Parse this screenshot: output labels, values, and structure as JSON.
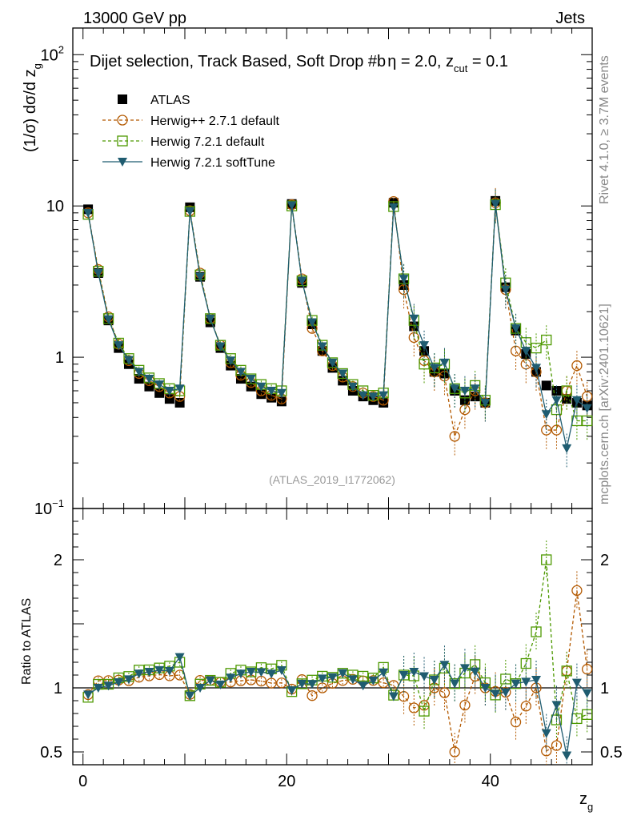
{
  "header": {
    "left": "13000 GeV pp",
    "right": "Jets"
  },
  "side_labels": {
    "rivet": "Rivet 4.1.0, ≥ 3.7M events",
    "source": "mcplots.cern.ch [arXiv:2401.10621]"
  },
  "chart_data": {
    "type": "line",
    "title": "Dijet selection, Track Based, Soft Drop #b",
    "subtitle_parts": {
      "eta": "η = 2.0, z",
      "cut_sub": "cut",
      "cut_val": " = 0.1"
    },
    "watermark": "(ATLAS_2019_I1772062)",
    "ylabel": "(1/σ) dσ/d z",
    "ylabel_sub": "g",
    "ratio_ylabel": "Ratio to ATLAS",
    "xlabel": "z",
    "xlabel_sub": "g",
    "xlim": [
      -1,
      50
    ],
    "ylim": [
      0.1,
      150
    ],
    "yscale": "log",
    "ratio_ylim": [
      0.4,
      2.4
    ],
    "x_ticks": [
      "0",
      "20",
      "40"
    ],
    "x_tick_values": [
      0,
      20,
      40
    ],
    "y_ticks": [
      {
        "value": 0.1,
        "label": "10",
        "exp": "−1"
      },
      {
        "value": 1,
        "label": "1",
        "exp": ""
      },
      {
        "value": 10,
        "label": "10",
        "exp": ""
      },
      {
        "value": 100,
        "label": "10",
        "exp": "2"
      }
    ],
    "ratio_ticks": [
      {
        "value": 0.5,
        "label": "0.5"
      },
      {
        "value": 1,
        "label": "1"
      },
      {
        "value": 2,
        "label": "2"
      }
    ],
    "x": [
      0.5,
      1.5,
      2.5,
      3.5,
      4.5,
      5.5,
      6.5,
      7.5,
      8.5,
      9.5,
      10.5,
      11.5,
      12.5,
      13.5,
      14.5,
      15.5,
      16.5,
      17.5,
      18.5,
      19.5,
      20.5,
      21.5,
      22.5,
      23.5,
      24.5,
      25.5,
      26.5,
      27.5,
      28.5,
      29.5,
      30.5,
      31.5,
      32.5,
      33.5,
      34.5,
      35.5,
      36.5,
      37.5,
      38.5,
      39.5,
      40.5,
      41.5,
      42.5,
      43.5,
      44.5,
      45.5,
      46.5,
      47.5,
      48.5,
      49.5
    ],
    "series": [
      {
        "name": "ATLAS",
        "color": "#000000",
        "marker": "square-filled",
        "values": [
          9.5,
          3.6,
          1.75,
          1.15,
          0.9,
          0.72,
          0.64,
          0.58,
          0.53,
          0.5,
          9.8,
          3.4,
          1.7,
          1.15,
          0.88,
          0.72,
          0.64,
          0.57,
          0.54,
          0.51,
          10.3,
          3.1,
          1.65,
          1.1,
          0.85,
          0.7,
          0.6,
          0.55,
          0.52,
          0.5,
          10.5,
          3.0,
          1.6,
          1.1,
          0.8,
          0.78,
          0.6,
          0.52,
          0.55,
          0.5,
          10.8,
          2.9,
          1.5,
          1.05,
          0.8,
          0.65,
          0.6,
          0.53,
          0.5,
          0.48
        ]
      },
      {
        "name": "Herwig++ 2.7.1 default",
        "color": "#b35900",
        "marker": "circle-open",
        "values": [
          9.0,
          3.8,
          1.85,
          1.22,
          0.95,
          0.78,
          0.7,
          0.64,
          0.58,
          0.55,
          9.3,
          3.6,
          1.8,
          1.2,
          0.92,
          0.76,
          0.68,
          0.6,
          0.56,
          0.53,
          10.2,
          3.3,
          1.55,
          1.1,
          0.88,
          0.74,
          0.64,
          0.58,
          0.55,
          0.52,
          10.7,
          2.8,
          1.35,
          0.95,
          0.8,
          0.75,
          0.3,
          0.45,
          0.6,
          0.5,
          10.5,
          2.8,
          1.1,
          0.9,
          0.8,
          0.33,
          0.33,
          0.6,
          0.88,
          0.55
        ]
      },
      {
        "name": "Herwig 7.2.1 default",
        "color": "#4d9900",
        "marker": "square-open",
        "values": [
          8.8,
          3.7,
          1.8,
          1.24,
          0.98,
          0.82,
          0.73,
          0.67,
          0.62,
          0.6,
          9.2,
          3.5,
          1.8,
          1.2,
          0.98,
          0.82,
          0.72,
          0.66,
          0.62,
          0.6,
          10.0,
          3.2,
          1.75,
          1.2,
          0.92,
          0.78,
          0.66,
          0.6,
          0.56,
          0.58,
          9.9,
          3.3,
          1.75,
          0.9,
          0.85,
          0.9,
          0.62,
          0.58,
          0.65,
          0.52,
          10.2,
          3.1,
          1.55,
          1.25,
          1.15,
          1.3,
          0.45,
          0.6,
          0.38,
          0.38
        ]
      },
      {
        "name": "Herwig 7.2.1 softTune",
        "color": "#1f5c70",
        "marker": "triangle-down-filled",
        "values": [
          9.0,
          3.6,
          1.78,
          1.2,
          0.96,
          0.8,
          0.72,
          0.66,
          0.6,
          0.62,
          9.2,
          3.4,
          1.8,
          1.18,
          0.95,
          0.8,
          0.72,
          0.64,
          0.6,
          0.58,
          10.1,
          3.2,
          1.7,
          1.18,
          0.92,
          0.78,
          0.64,
          0.56,
          0.55,
          0.56,
          9.8,
          3.3,
          1.8,
          1.2,
          0.85,
          0.92,
          0.62,
          0.6,
          0.62,
          0.5,
          10.3,
          2.8,
          1.55,
          1.1,
          0.85,
          0.42,
          0.52,
          0.25,
          0.52,
          0.46
        ]
      }
    ]
  }
}
